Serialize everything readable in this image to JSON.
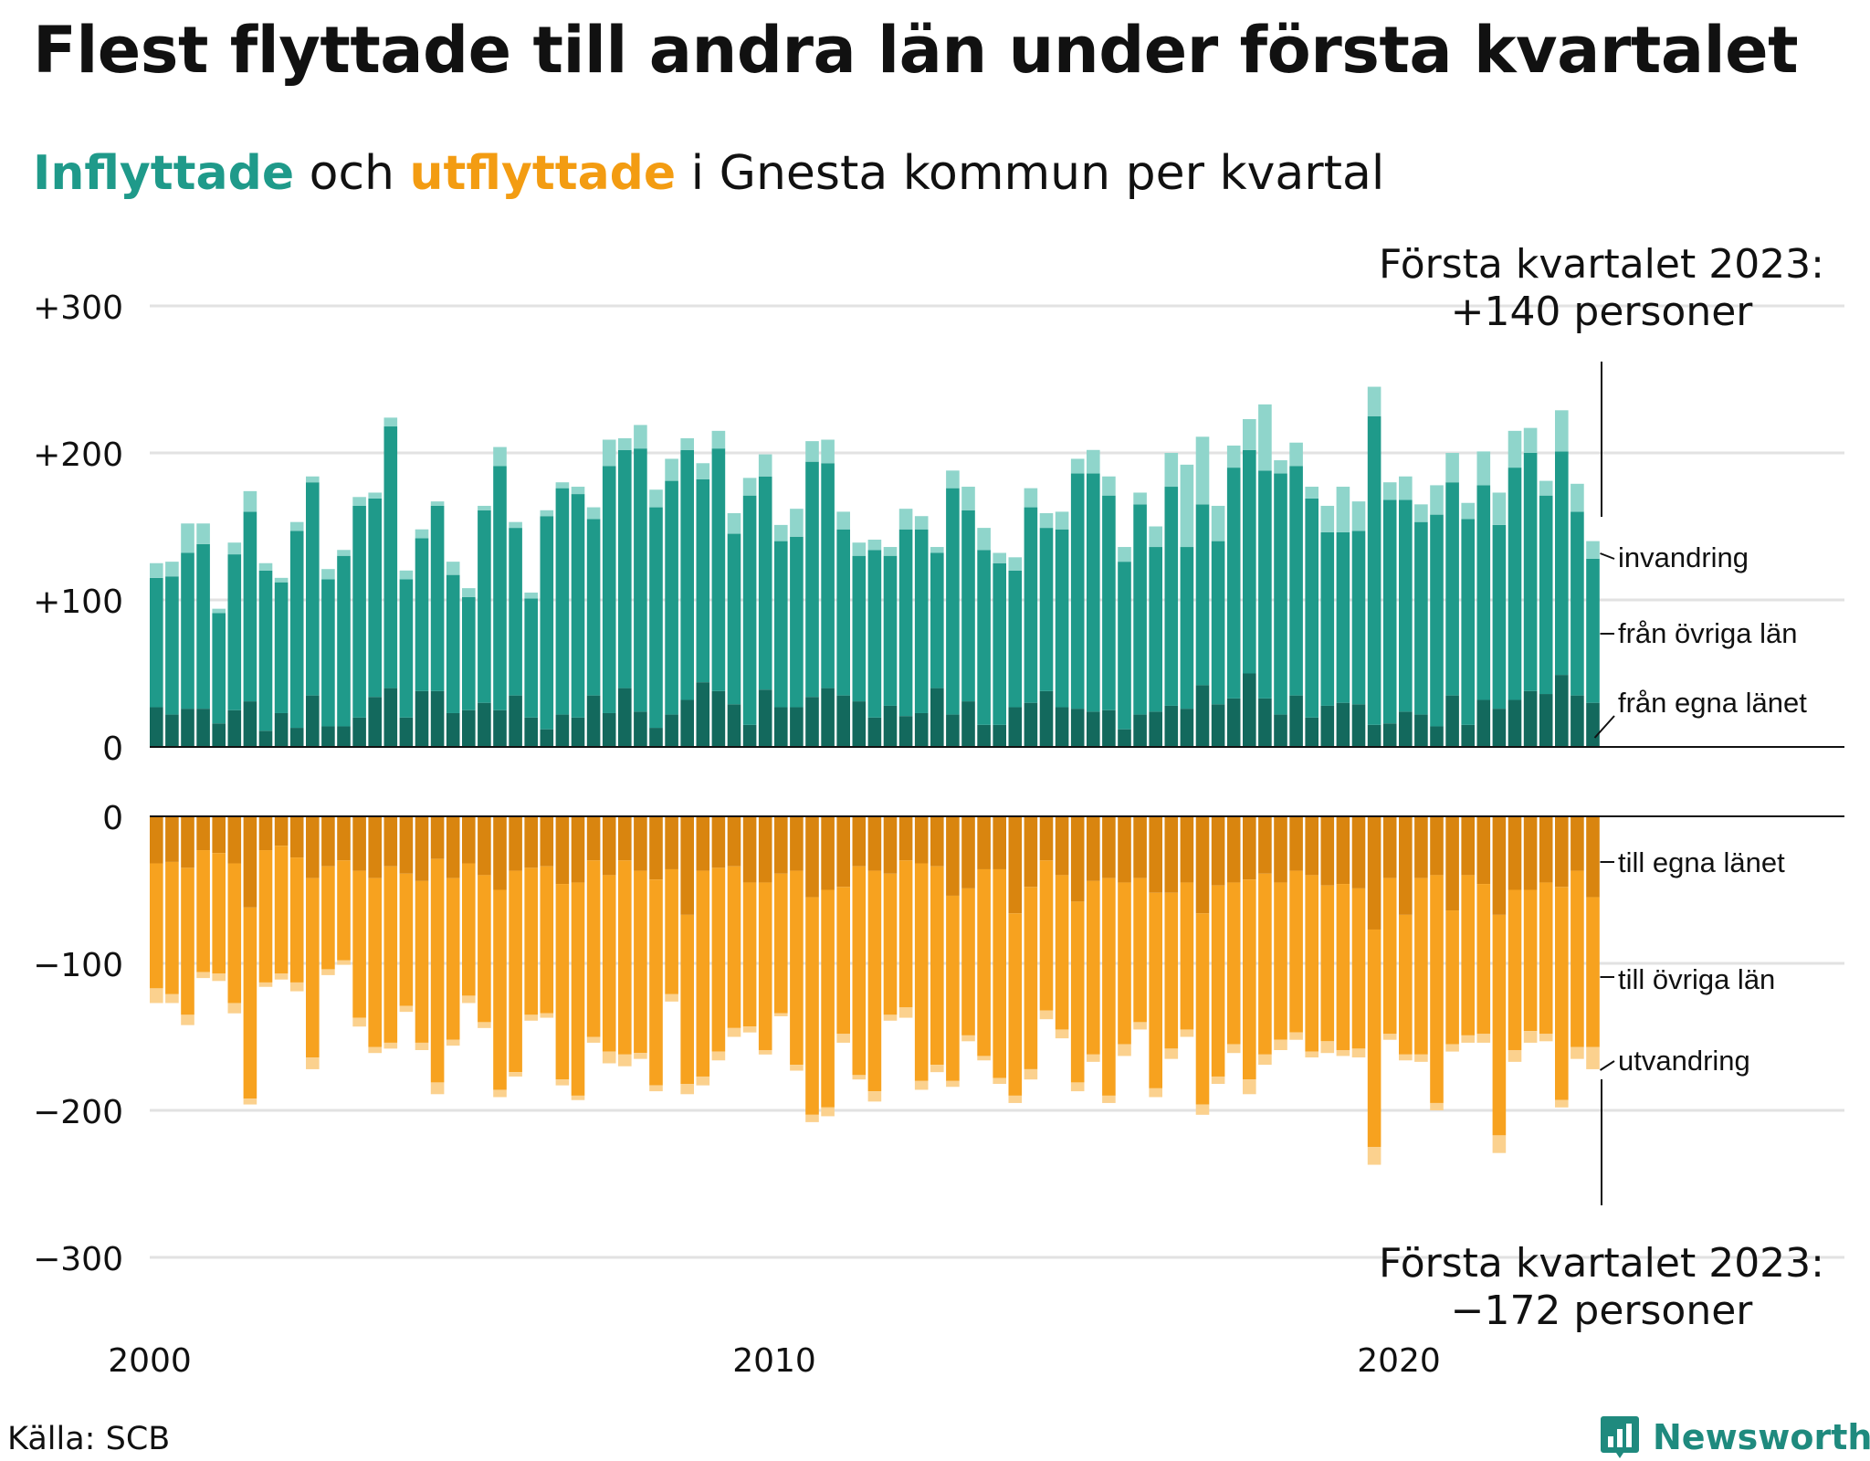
{
  "title": "Flest flyttade till andra län under första kvartalet",
  "subtitle": {
    "inflyttade": "Inflyttade",
    "och": " och ",
    "utflyttade": "utflyttade",
    "rest": " i Gnesta kommun per kvartal"
  },
  "source": "Källa: SCB",
  "brand": "Newsworthy",
  "colors": {
    "egna_in": "#13695d",
    "ovriga_in": "#1f9a8a",
    "invandring": "#8fd5cb",
    "egna_ut": "#d9850f",
    "ovriga_ut": "#f7a21f",
    "utvandring": "#fbd18e",
    "grid": "#e2e2e2"
  },
  "annotations": {
    "top": {
      "line1": "Första kvartalet 2023:",
      "line2": "+140 personer"
    },
    "bottom": {
      "line1": "Första kvartalet 2023:",
      "line2": "−172 personer"
    }
  },
  "chart_data": {
    "type": "bar",
    "stacked": true,
    "time_axis": {
      "start": "2000 Q1",
      "end": "2023 Q1",
      "tick_labels": [
        "2000",
        "2010",
        "2020"
      ]
    },
    "top_panel": {
      "y_ticks": [
        "0",
        "+100",
        "+200",
        "+300"
      ],
      "ylim": [
        0,
        300
      ],
      "series": [
        {
          "name": "från egna länet",
          "values": [
            27,
            22,
            26,
            26,
            16,
            25,
            31,
            11,
            23,
            13,
            35,
            14,
            14,
            20,
            34,
            40,
            20,
            38,
            38,
            23,
            25,
            30,
            25,
            35,
            20,
            12,
            22,
            20,
            35,
            23,
            40,
            24,
            13,
            22,
            32,
            44,
            38,
            29,
            15,
            39,
            27,
            27,
            34,
            40,
            35,
            31,
            20,
            28,
            21,
            23,
            40,
            22,
            31,
            15,
            15,
            27,
            30,
            38,
            27,
            26,
            24,
            25,
            12,
            22,
            24,
            28,
            26,
            42,
            29,
            33,
            50,
            33,
            22,
            35,
            20,
            28,
            30,
            29,
            15,
            16,
            24,
            22,
            14,
            35,
            15,
            32,
            26,
            32,
            38,
            36,
            49,
            35,
            30
          ]
        },
        {
          "name": "från övriga län",
          "values": [
            88,
            94,
            106,
            112,
            75,
            106,
            129,
            109,
            89,
            134,
            145,
            100,
            116,
            144,
            135,
            178,
            94,
            104,
            126,
            94,
            77,
            131,
            166,
            114,
            81,
            145,
            154,
            152,
            120,
            168,
            162,
            179,
            150,
            159,
            170,
            138,
            165,
            116,
            156,
            145,
            113,
            116,
            160,
            153,
            113,
            99,
            114,
            102,
            127,
            125,
            92,
            154,
            130,
            119,
            110,
            93,
            133,
            111,
            121,
            160,
            162,
            146,
            114,
            143,
            112,
            149,
            110,
            123,
            111,
            157,
            152,
            155,
            164,
            156,
            149,
            118,
            116,
            118,
            210,
            152,
            144,
            131,
            144,
            145,
            140,
            146,
            125,
            158,
            162,
            135,
            152,
            125,
            98
          ]
        },
        {
          "name": "invandring",
          "values": [
            10,
            10,
            20,
            14,
            3,
            8,
            14,
            5,
            3,
            6,
            4,
            7,
            4,
            6,
            4,
            6,
            6,
            6,
            3,
            9,
            6,
            3,
            13,
            4,
            4,
            4,
            4,
            5,
            8,
            18,
            8,
            16,
            12,
            15,
            8,
            11,
            12,
            14,
            12,
            15,
            11,
            19,
            14,
            16,
            12,
            9,
            7,
            6,
            14,
            9,
            4,
            12,
            16,
            15,
            7,
            9,
            13,
            10,
            12,
            10,
            16,
            13,
            10,
            8,
            14,
            23,
            56,
            46,
            24,
            15,
            21,
            45,
            9,
            16,
            8,
            18,
            31,
            20,
            20,
            12,
            16,
            12,
            20,
            20,
            11,
            23,
            22,
            25,
            17,
            10,
            28,
            19,
            12
          ]
        }
      ]
    },
    "bottom_panel": {
      "y_ticks": [
        "0",
        "−100",
        "−200",
        "−300"
      ],
      "ylim": [
        -300,
        0
      ],
      "series": [
        {
          "name": "till egna länet",
          "values": [
            32,
            31,
            35,
            23,
            25,
            32,
            62,
            23,
            20,
            28,
            42,
            34,
            30,
            37,
            42,
            34,
            39,
            44,
            29,
            42,
            32,
            40,
            50,
            37,
            35,
            34,
            46,
            45,
            30,
            40,
            30,
            37,
            43,
            36,
            67,
            37,
            35,
            34,
            45,
            45,
            39,
            37,
            55,
            50,
            48,
            34,
            37,
            39,
            30,
            32,
            34,
            54,
            49,
            36,
            36,
            66,
            48,
            30,
            40,
            58,
            44,
            42,
            45,
            42,
            52,
            52,
            45,
            66,
            47,
            45,
            43,
            39,
            45,
            37,
            40,
            47,
            46,
            49,
            77,
            42,
            67,
            42,
            40,
            64,
            40,
            46,
            67,
            50,
            50,
            45,
            48,
            37,
            55
          ]
        },
        {
          "name": "till övriga län",
          "values": [
            85,
            90,
            100,
            83,
            82,
            95,
            130,
            90,
            87,
            85,
            122,
            70,
            68,
            100,
            115,
            120,
            90,
            110,
            152,
            110,
            90,
            100,
            136,
            137,
            100,
            100,
            133,
            145,
            120,
            120,
            132,
            124,
            140,
            85,
            115,
            140,
            125,
            110,
            98,
            114,
            95,
            132,
            148,
            148,
            100,
            142,
            150,
            96,
            100,
            148,
            135,
            126,
            100,
            127,
            142,
            124,
            124,
            102,
            105,
            123,
            118,
            148,
            110,
            98,
            133,
            106,
            100,
            130,
            130,
            110,
            136,
            123,
            107,
            110,
            120,
            106,
            113,
            109,
            148,
            106,
            95,
            120,
            155,
            91,
            109,
            102,
            150,
            109,
            96,
            103,
            145,
            120,
            102
          ]
        },
        {
          "name": "utvandring",
          "values": [
            10,
            6,
            7,
            4,
            5,
            7,
            4,
            3,
            4,
            6,
            8,
            4,
            3,
            6,
            4,
            4,
            4,
            5,
            8,
            4,
            5,
            4,
            5,
            3,
            4,
            3,
            4,
            3,
            4,
            8,
            8,
            4,
            4,
            5,
            7,
            6,
            6,
            6,
            4,
            3,
            2,
            4,
            5,
            6,
            6,
            3,
            7,
            4,
            7,
            6,
            5,
            4,
            4,
            3,
            4,
            5,
            7,
            6,
            6,
            6,
            5,
            5,
            8,
            5,
            6,
            7,
            5,
            7,
            5,
            6,
            10,
            7,
            7,
            5,
            4,
            8,
            4,
            6,
            12,
            4,
            4,
            5,
            5,
            5,
            5,
            6,
            12,
            8,
            8,
            5,
            5,
            8,
            15
          ]
        }
      ]
    },
    "labels_right_top": [
      "invandring",
      "från övriga län",
      "från egna länet"
    ],
    "labels_right_bottom": [
      "till egna länet",
      "till övriga län",
      "utvandring"
    ]
  }
}
